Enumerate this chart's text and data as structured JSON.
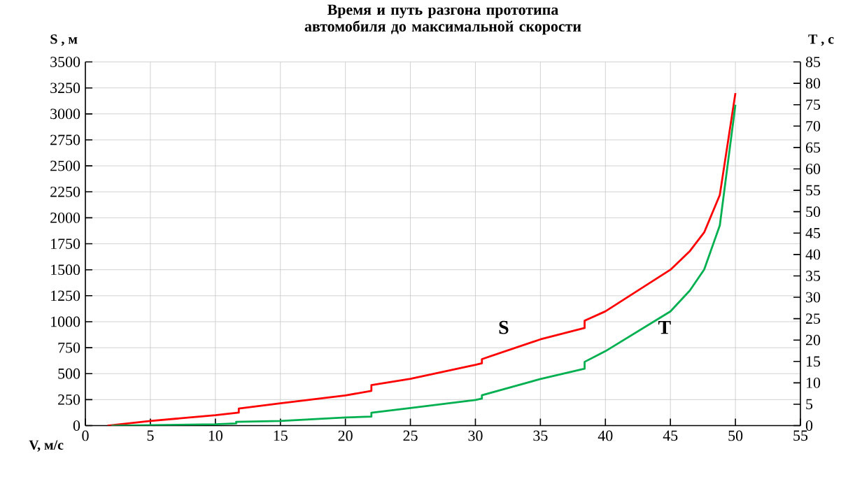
{
  "chart_data": {
    "type": "line",
    "title": "Время и путь разгона прототипа автомобиля до максимальной скорости",
    "xlabel": "V, м/с",
    "ylabel": "S , м",
    "y2label": "T , с",
    "xlim": [
      0,
      55
    ],
    "xticks": [
      0,
      5,
      10,
      15,
      20,
      25,
      30,
      35,
      40,
      45,
      50,
      55
    ],
    "ylim": [
      0,
      3500
    ],
    "yticks": [
      0,
      250,
      500,
      750,
      1000,
      1250,
      1500,
      1750,
      2000,
      2250,
      2500,
      2750,
      3000,
      3250,
      3500
    ],
    "y2lim": [
      0,
      85
    ],
    "y2ticks": [
      0,
      5,
      10,
      15,
      20,
      25,
      30,
      35,
      40,
      45,
      50,
      55,
      60,
      65,
      70,
      75,
      80,
      85
    ],
    "grid": true,
    "marker": "none",
    "line_style": "solid",
    "series": [
      {
        "name": "S",
        "color": "#ff0000",
        "x": [
          1.7,
          5,
          10,
          11.8,
          11.8,
          15,
          20,
          22,
          22,
          25,
          30,
          30.5,
          30.5,
          35,
          38.4,
          38.4,
          40,
          45,
          46.5,
          47.6,
          48.8,
          50
        ],
        "values": [
          0,
          45,
          100,
          125,
          165,
          215,
          290,
          335,
          390,
          450,
          585,
          600,
          640,
          830,
          940,
          1010,
          1100,
          1500,
          1680,
          1860,
          2220,
          3200
        ]
      },
      {
        "name": "T",
        "color": "#00b050",
        "axis": "y2",
        "x": [
          2,
          5,
          10,
          11.6,
          11.6,
          15,
          20,
          22,
          22,
          25,
          30,
          30.5,
          30.5,
          35,
          38.4,
          38.4,
          40,
          45,
          46.5,
          47.6,
          48.8,
          50
        ],
        "values": [
          0,
          0.1,
          0.3,
          0.5,
          0.9,
          1.1,
          1.9,
          2.1,
          3.0,
          4.1,
          6.0,
          6.3,
          7.1,
          10.9,
          13.3,
          14.9,
          17.4,
          26.7,
          31.6,
          36.5,
          46.8,
          75
        ]
      }
    ]
  }
}
